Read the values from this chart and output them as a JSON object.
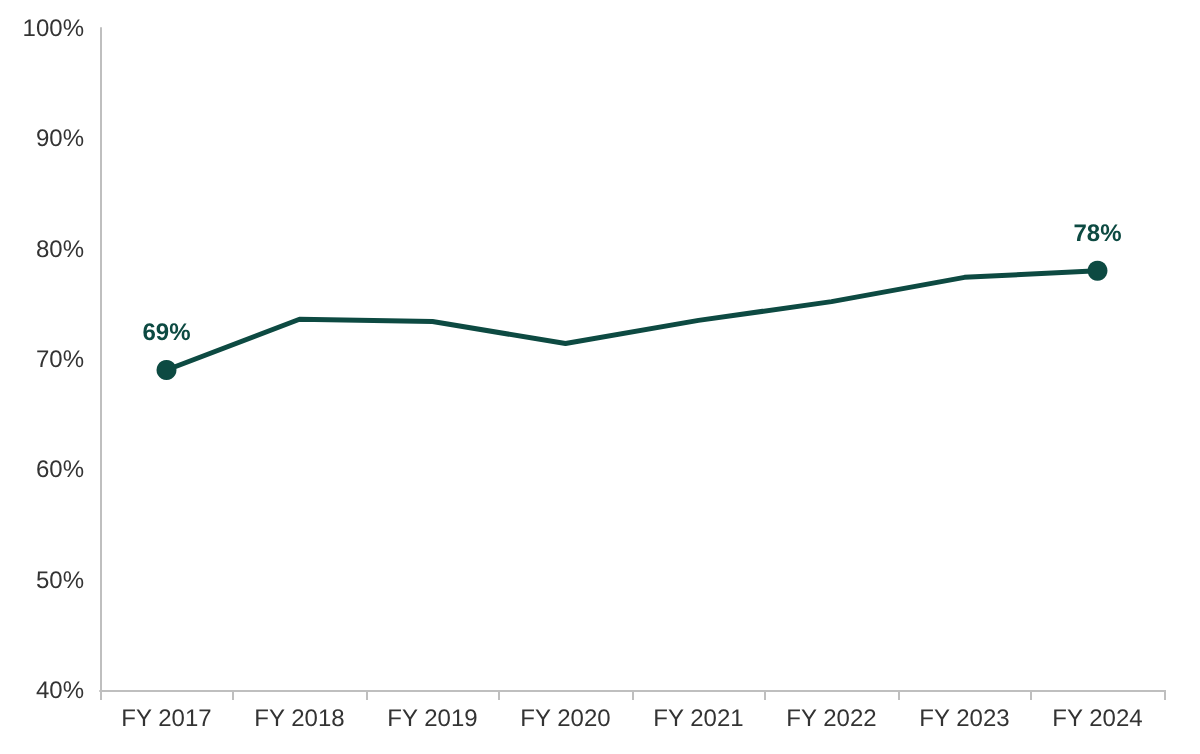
{
  "chart_data": {
    "type": "line",
    "categories": [
      "FY 2017",
      "FY 2018",
      "FY 2019",
      "FY 2020",
      "FY 2021",
      "FY 2022",
      "FY 2023",
      "FY 2024"
    ],
    "series": [
      {
        "color": "#0d4a42",
        "values": [
          69,
          73.6,
          73.4,
          71.4,
          73.5,
          75.2,
          77.4,
          78
        ],
        "value_labels": [
          "69%",
          null,
          null,
          null,
          null,
          null,
          null,
          "78%"
        ]
      }
    ],
    "ylim": [
      40,
      100
    ],
    "yticks": [
      {
        "value": 40,
        "label": "40%"
      },
      {
        "value": 50,
        "label": "50%"
      },
      {
        "value": 60,
        "label": "60%"
      },
      {
        "value": 70,
        "label": "70%"
      },
      {
        "value": 80,
        "label": "80%"
      },
      {
        "value": 90,
        "label": "90%"
      },
      {
        "value": 100,
        "label": "100%"
      }
    ],
    "grid": false,
    "line_style": "solid"
  }
}
